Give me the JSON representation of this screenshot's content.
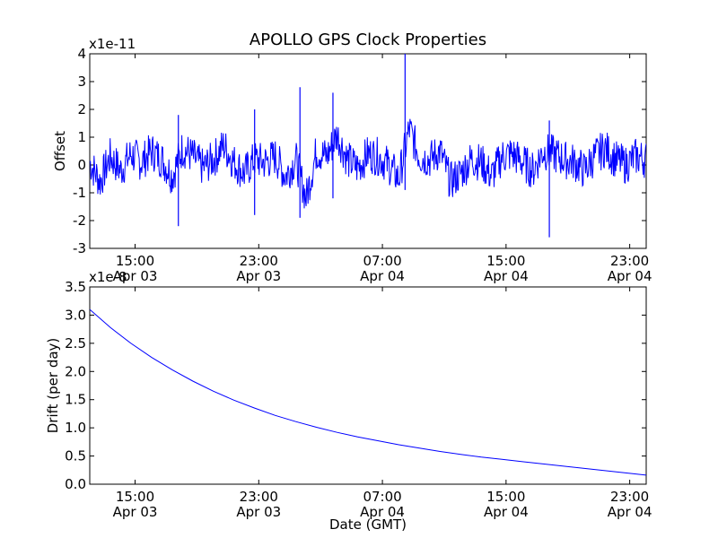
{
  "figure": {
    "title": "APOLLO GPS Clock Properties"
  },
  "chart_data": [
    {
      "type": "line",
      "title": "APOLLO GPS Clock Properties",
      "ylabel": "Offset",
      "xlabel": "",
      "exponent_label": "x1e-11",
      "x_range_hours": [
        0,
        27
      ],
      "ylim": [
        -3,
        4
      ],
      "yticks": [
        -3,
        -2,
        -1,
        0,
        1,
        2,
        3,
        4
      ],
      "ytick_labels": [
        "-3",
        "-2",
        "-1",
        "0",
        "1",
        "2",
        "3",
        "4"
      ],
      "xticks": [
        {
          "hour": 2.2,
          "time": "15:00",
          "date": "Apr 03"
        },
        {
          "hour": 8.2,
          "time": "23:00",
          "date": "Apr 03"
        },
        {
          "hour": 14.2,
          "time": "07:00",
          "date": "Apr 04"
        },
        {
          "hour": 20.2,
          "time": "15:00",
          "date": "Apr 04"
        },
        {
          "hour": 26.2,
          "time": "23:00",
          "date": "Apr 04"
        }
      ],
      "series": [
        {
          "name": "Offset",
          "color": "#0000ff",
          "x": [
            0,
            0.5,
            1,
            1.5,
            2,
            2.5,
            3,
            3.5,
            4,
            4.5,
            5,
            5.5,
            6,
            6.5,
            7,
            7.5,
            8,
            8.5,
            9,
            9.5,
            10,
            10.5,
            11,
            11.5,
            12,
            12.5,
            13,
            13.5,
            14,
            14.5,
            15,
            15.5,
            16,
            16.5,
            17,
            17.5,
            18,
            18.5,
            19,
            19.5,
            20,
            20.5,
            21,
            21.5,
            22,
            22.5,
            23,
            23.5,
            24,
            24.5,
            25,
            25.5,
            26,
            26.5,
            27
          ],
          "values": [
            0.1,
            -0.6,
            0.3,
            -0.2,
            0.4,
            0.1,
            0.5,
            0.2,
            -0.4,
            0.6,
            0.3,
            -0.1,
            0.2,
            0.7,
            0.1,
            -0.3,
            0.2,
            0.1,
            0.3,
            -0.4,
            0.2,
            -1.2,
            0.5,
            0.3,
            1.1,
            0.2,
            -0.1,
            0.4,
            0.3,
            0.0,
            -0.5,
            1.3,
            0.3,
            0.2,
            0.5,
            -0.6,
            -0.3,
            0.2,
            0.1,
            -0.4,
            0.3,
            0.4,
            0.1,
            -0.2,
            0.5,
            0.4,
            0.2,
            0.1,
            -0.2,
            0.3,
            0.6,
            0.2,
            0.0,
            0.3,
            0.2
          ],
          "spikes": [
            {
              "x": 4.3,
              "min": -2.2,
              "max": 1.8
            },
            {
              "x": 8.0,
              "min": -1.8,
              "max": 2.0
            },
            {
              "x": 10.2,
              "min": -1.9,
              "max": 2.8
            },
            {
              "x": 11.8,
              "min": -1.2,
              "max": 2.6
            },
            {
              "x": 15.3,
              "min": -0.9,
              "max": 4.1
            },
            {
              "x": 22.3,
              "min": -2.6,
              "max": 1.6
            }
          ]
        }
      ]
    },
    {
      "type": "line",
      "title": "",
      "ylabel": "Drift (per day)",
      "xlabel": "Date (GMT)",
      "exponent_label": "x1e-8",
      "x_range_hours": [
        0,
        27
      ],
      "ylim": [
        0.0,
        3.5
      ],
      "yticks": [
        0.0,
        0.5,
        1.0,
        1.5,
        2.0,
        2.5,
        3.0,
        3.5
      ],
      "ytick_labels": [
        "0.0",
        "0.5",
        "1.0",
        "1.5",
        "2.0",
        "2.5",
        "3.0",
        "3.5"
      ],
      "xticks": [
        {
          "hour": 2.2,
          "time": "15:00",
          "date": "Apr 03"
        },
        {
          "hour": 8.2,
          "time": "23:00",
          "date": "Apr 03"
        },
        {
          "hour": 14.2,
          "time": "07:00",
          "date": "Apr 04"
        },
        {
          "hour": 20.2,
          "time": "15:00",
          "date": "Apr 04"
        },
        {
          "hour": 26.2,
          "time": "23:00",
          "date": "Apr 04"
        }
      ],
      "series": [
        {
          "name": "Drift",
          "color": "#0000ff",
          "x": [
            0,
            1,
            2,
            3,
            4,
            5,
            6,
            7,
            8,
            9,
            10,
            11,
            12,
            13,
            14,
            15,
            16,
            17,
            18,
            19,
            20,
            21,
            22,
            23,
            24,
            25,
            26,
            27
          ],
          "values": [
            3.1,
            2.78,
            2.5,
            2.25,
            2.03,
            1.83,
            1.65,
            1.49,
            1.35,
            1.22,
            1.11,
            1.01,
            0.92,
            0.84,
            0.77,
            0.7,
            0.64,
            0.58,
            0.53,
            0.48,
            0.44,
            0.4,
            0.36,
            0.32,
            0.28,
            0.24,
            0.2,
            0.16
          ]
        }
      ]
    }
  ]
}
